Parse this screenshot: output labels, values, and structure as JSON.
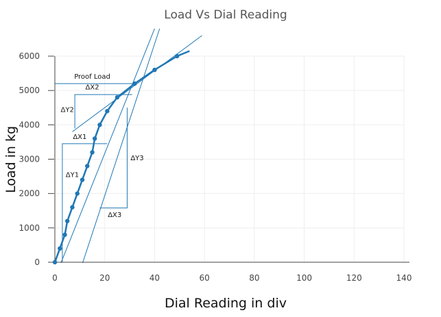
{
  "chart_data": {
    "type": "line",
    "title": "Load Vs Dial Reading",
    "xlabel": "Dial Reading in div",
    "ylabel": "Load in kg",
    "xlim": [
      0,
      140
    ],
    "ylim": [
      0,
      6000
    ],
    "xticks": [
      0,
      20,
      40,
      60,
      80,
      100,
      120,
      140
    ],
    "yticks": [
      0,
      1000,
      2000,
      3000,
      4000,
      5000,
      6000
    ],
    "grid": true,
    "series": [
      {
        "style": "lines+markers",
        "color": "#1f77b4",
        "x": [
          0,
          2,
          4,
          5,
          7,
          9,
          11,
          13,
          15,
          16,
          18,
          21,
          25,
          32,
          40,
          49,
          54
        ],
        "y": [
          0,
          400,
          800,
          1200,
          1600,
          2000,
          2400,
          2800,
          3200,
          3600,
          4000,
          4400,
          4800,
          5200,
          5600,
          6000,
          6150
        ],
        "markers": [
          true,
          true,
          true,
          true,
          true,
          true,
          true,
          true,
          true,
          true,
          true,
          true,
          true,
          true,
          true,
          true,
          false
        ]
      }
    ],
    "shapes": [
      {
        "kind": "proof-load-line",
        "x": [
          0,
          32
        ],
        "y": [
          5200,
          5200
        ]
      },
      {
        "kind": "tangent-1",
        "x": [
          2,
          40
        ],
        "y": [
          -100,
          6800
        ]
      },
      {
        "kind": "tangent-2",
        "x": [
          11,
          42
        ],
        "y": [
          -50,
          6800
        ]
      },
      {
        "kind": "tangent-3",
        "x": [
          7,
          59
        ],
        "y": [
          3800,
          6600
        ]
      },
      {
        "kind": "delta-1",
        "x": [
          3,
          3,
          21
        ],
        "y": [
          0,
          3450,
          3450
        ]
      },
      {
        "kind": "delta-2",
        "x": [
          8,
          8,
          31
        ],
        "y": [
          3900,
          4880,
          4880
        ]
      },
      {
        "kind": "delta-3",
        "x": [
          29,
          29,
          18
        ],
        "y": [
          4500,
          1580,
          1580
        ]
      }
    ],
    "annotations": [
      {
        "text": "Proof Load",
        "x": 15,
        "y": 5340
      },
      {
        "text": "ΔX2",
        "x": 15,
        "y": 5030
      },
      {
        "text": "ΔY2",
        "x": 5,
        "y": 4380
      },
      {
        "text": "ΔX1",
        "x": 10,
        "y": 3590
      },
      {
        "text": "ΔY1",
        "x": 7,
        "y": 2480
      },
      {
        "text": "ΔY3",
        "x": 33,
        "y": 2970
      },
      {
        "text": "ΔX3",
        "x": 24,
        "y": 1320
      }
    ]
  }
}
